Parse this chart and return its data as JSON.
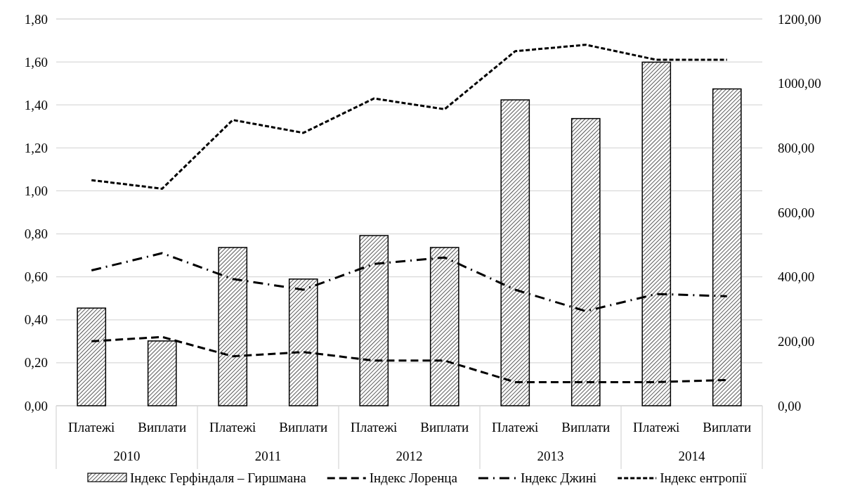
{
  "chart_data": {
    "type": "bar",
    "categories": [
      "Платежі",
      "Виплати",
      "Платежі",
      "Виплати",
      "Платежі",
      "Виплати",
      "Платежі",
      "Виплати",
      "Платежі",
      "Виплати"
    ],
    "series": [
      {
        "name": "Індекс Герфіндаля – Гиршмана",
        "axis": "y2",
        "color": "#000000",
        "values": [
          303,
          201,
          491,
          393,
          528,
          491,
          949,
          891,
          1066,
          983
        ]
      },
      {
        "name": "Індекс Лоренца",
        "type": "line",
        "line_style": "dashed",
        "color": "#000000",
        "values": [
          0.3,
          0.32,
          0.23,
          0.25,
          0.21,
          0.21,
          0.11,
          0.11,
          0.11,
          0.12
        ]
      },
      {
        "name": "Індекс Джині",
        "type": "line",
        "line_style": "dashdot",
        "color": "#000000",
        "values": [
          0.63,
          0.71,
          0.59,
          0.54,
          0.66,
          0.69,
          0.54,
          0.44,
          0.52,
          0.51
        ]
      },
      {
        "name": "Індекс ентропії",
        "type": "line",
        "line_style": "dotted",
        "color": "#000000",
        "values": [
          1.05,
          1.01,
          1.33,
          1.27,
          1.43,
          1.38,
          1.65,
          1.68,
          1.61,
          1.61
        ]
      }
    ],
    "annotations": [
      "2010",
      "2011",
      "2012",
      "2013",
      "2014"
    ],
    "ylim": [
      0,
      1.8
    ],
    "yticks": [
      {
        "value": 0,
        "label": "0,00"
      },
      {
        "value": 0.2,
        "label": "0,20"
      },
      {
        "value": 0.4,
        "label": "0,40"
      },
      {
        "value": 0.6,
        "label": "0,60"
      },
      {
        "value": 0.8,
        "label": "0,80"
      },
      {
        "value": 1.0,
        "label": "1,00"
      },
      {
        "value": 1.2,
        "label": "1,20"
      },
      {
        "value": 1.4,
        "label": "1,40"
      },
      {
        "value": 1.6,
        "label": "1,60"
      },
      {
        "value": 1.8,
        "label": "1,80"
      }
    ],
    "y2lim": [
      0,
      1200
    ],
    "y2ticks": [
      {
        "value": 0,
        "label": "0,00"
      },
      {
        "value": 200,
        "label": "200,00"
      },
      {
        "value": 400,
        "label": "400,00"
      },
      {
        "value": 600,
        "label": "600,00"
      },
      {
        "value": 800,
        "label": "800,00"
      },
      {
        "value": 1000,
        "label": "1000,00"
      },
      {
        "value": 1200,
        "label": "1200,00"
      }
    ],
    "grid": "y",
    "legend": "bottom"
  }
}
